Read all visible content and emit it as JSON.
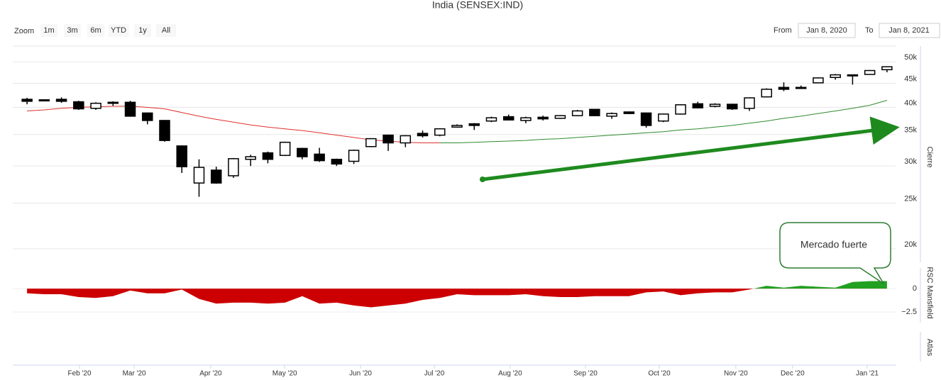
{
  "header": {
    "title": "India (SENSEX:IND)",
    "zoom_label": "Zoom",
    "zoom_buttons": [
      "1m",
      "3m",
      "6m",
      "YTD",
      "1y",
      "All"
    ],
    "from_label": "From",
    "from": "Jan 8, 2020",
    "to_label": "To",
    "to": "Jan 8, 2021"
  },
  "chart_data": [
    {
      "type": "candlestick",
      "y_label": "Cierre",
      "log_scale": true,
      "grid": true,
      "up_color": "#ffffff",
      "down_color": "#000000",
      "open": [
        41600,
        41400,
        41600,
        41100,
        39800,
        40900,
        41000,
        38900,
        37500,
        33100,
        27600,
        29400,
        28600,
        31000,
        32000,
        31600,
        32700,
        31800,
        31000,
        30700,
        33000,
        34900,
        33600,
        35200,
        34900,
        36300,
        36900,
        37400,
        38200,
        37500,
        38100,
        37900,
        38400,
        39600,
        38300,
        39100,
        38900,
        37400,
        38700,
        40700,
        40200,
        40600,
        39800,
        42100,
        44100,
        44000,
        45100,
        46300,
        46900,
        47000,
        48100
      ],
      "high": [
        41900,
        41600,
        42000,
        41300,
        41000,
        41200,
        41300,
        39000,
        37600,
        33200,
        31000,
        29900,
        31200,
        31700,
        32200,
        33800,
        32800,
        32800,
        31100,
        32500,
        34400,
        35000,
        34900,
        35700,
        36100,
        36800,
        37000,
        38200,
        38600,
        38200,
        38400,
        38500,
        39500,
        39700,
        39000,
        39200,
        38900,
        38800,
        40600,
        41100,
        40800,
        40700,
        42000,
        43900,
        45200,
        44500,
        46300,
        47100,
        47000,
        48000,
        48900
      ],
      "low": [
        40600,
        41300,
        40900,
        39500,
        39500,
        40300,
        38200,
        36800,
        33800,
        29000,
        25800,
        27500,
        28300,
        30000,
        30400,
        31500,
        31000,
        30600,
        30000,
        30300,
        32900,
        32300,
        32900,
        34500,
        34700,
        36200,
        35800,
        37200,
        37500,
        37000,
        37500,
        37800,
        38300,
        38300,
        37800,
        38700,
        36200,
        37200,
        38600,
        39800,
        40000,
        39500,
        39300,
        42000,
        43300,
        43800,
        45000,
        45800,
        44700,
        46900,
        47500
      ],
      "close": [
        41200,
        41500,
        41200,
        39700,
        40800,
        41000,
        38300,
        37500,
        34000,
        29900,
        29800,
        27600,
        31100,
        31400,
        31000,
        33700,
        31400,
        30800,
        30300,
        32400,
        34300,
        33600,
        34800,
        34800,
        36000,
        36600,
        36600,
        38000,
        37600,
        38000,
        37800,
        38400,
        39300,
        38400,
        38800,
        38800,
        36600,
        38700,
        40500,
        39900,
        40600,
        39700,
        41900,
        43700,
        43700,
        44100,
        46200,
        46900,
        46800,
        47900,
        48800
      ],
      "lines": [
        {
          "color": "#e0302e",
          "values": [
            39300,
            39500,
            39800,
            40000,
            40100,
            40200,
            40200,
            40000,
            39700,
            39000,
            38300,
            37700,
            37200,
            36700,
            36300,
            36000,
            35700,
            35300,
            34900,
            34500,
            34100,
            33900,
            33700,
            33600,
            33600,
            null,
            null,
            null,
            null,
            null,
            null,
            null,
            null,
            null,
            null,
            null,
            null,
            null,
            null,
            null,
            null,
            null,
            null,
            null,
            null,
            null,
            null,
            null,
            null,
            null,
            null
          ]
        },
        {
          "color": "#2e8b2e",
          "values": [
            null,
            null,
            null,
            null,
            null,
            null,
            null,
            null,
            null,
            null,
            null,
            null,
            null,
            null,
            null,
            null,
            null,
            null,
            null,
            null,
            null,
            null,
            null,
            null,
            33600,
            33600,
            33700,
            33800,
            33900,
            34000,
            34200,
            34300,
            34500,
            34700,
            34900,
            35100,
            35300,
            35500,
            35800,
            36000,
            36300,
            36600,
            37000,
            37400,
            37900,
            38300,
            38800,
            39300,
            39800,
            40400,
            41400
          ]
        }
      ],
      "ylim": [
        18200,
        54000
      ],
      "yticks": [
        {
          "value": 20000,
          "label": "20k"
        },
        {
          "value": 25000,
          "label": "25k"
        },
        {
          "value": 30000,
          "label": "30k"
        },
        {
          "value": 35000,
          "label": "35k"
        },
        {
          "value": 40000,
          "label": "40k"
        },
        {
          "value": 45000,
          "label": "45k"
        },
        {
          "value": 50000,
          "label": "50k"
        }
      ],
      "xlim": [
        -0.83,
        50.5
      ],
      "xticks": [
        {
          "value": 3.05,
          "label": "Feb '20"
        },
        {
          "value": 6.23,
          "label": "Mar '20"
        },
        {
          "value": 10.68,
          "label": "Apr '20"
        },
        {
          "value": 14.98,
          "label": "May '20"
        },
        {
          "value": 19.39,
          "label": "Jun '20"
        },
        {
          "value": 23.68,
          "label": "Jul '20"
        },
        {
          "value": 28.09,
          "label": "Aug '20"
        },
        {
          "value": 32.47,
          "label": "Sep '20"
        },
        {
          "value": 36.76,
          "label": "Oct '20"
        },
        {
          "value": 41.21,
          "label": "Nov '20"
        },
        {
          "value": 44.51,
          "label": "Dec '20"
        },
        {
          "value": 48.85,
          "label": "Jan '21"
        }
      ]
    },
    {
      "type": "area",
      "y_label": "RSC Mansfield",
      "positive_color": "#22a022",
      "negative_color": "#cc0000",
      "annotation": "Mercado fuerte",
      "values": [
        -0.5,
        -0.6,
        -0.6,
        -0.9,
        -1.0,
        -0.8,
        -0.2,
        -0.5,
        -0.5,
        -0.1,
        -1.1,
        -1.6,
        -1.5,
        -1.5,
        -1.6,
        -1.5,
        -0.8,
        -1.6,
        -1.5,
        -1.8,
        -2.0,
        -1.8,
        -1.6,
        -1.2,
        -1.0,
        -0.6,
        -0.7,
        -0.7,
        -0.7,
        -0.6,
        -0.8,
        -0.9,
        -0.9,
        -0.8,
        -0.8,
        -0.8,
        -0.4,
        -0.3,
        -0.7,
        -0.5,
        -0.4,
        -0.4,
        -0.1,
        0.3,
        0.1,
        0.3,
        0.2,
        0.1,
        0.7,
        0.8,
        0.8
      ],
      "ylim": [
        -4,
        2.2
      ],
      "yticks": [
        {
          "value": -2.5,
          "label": "−2.5"
        },
        0
      ]
    },
    {
      "type": "empty",
      "y_label": "Atlas"
    }
  ]
}
